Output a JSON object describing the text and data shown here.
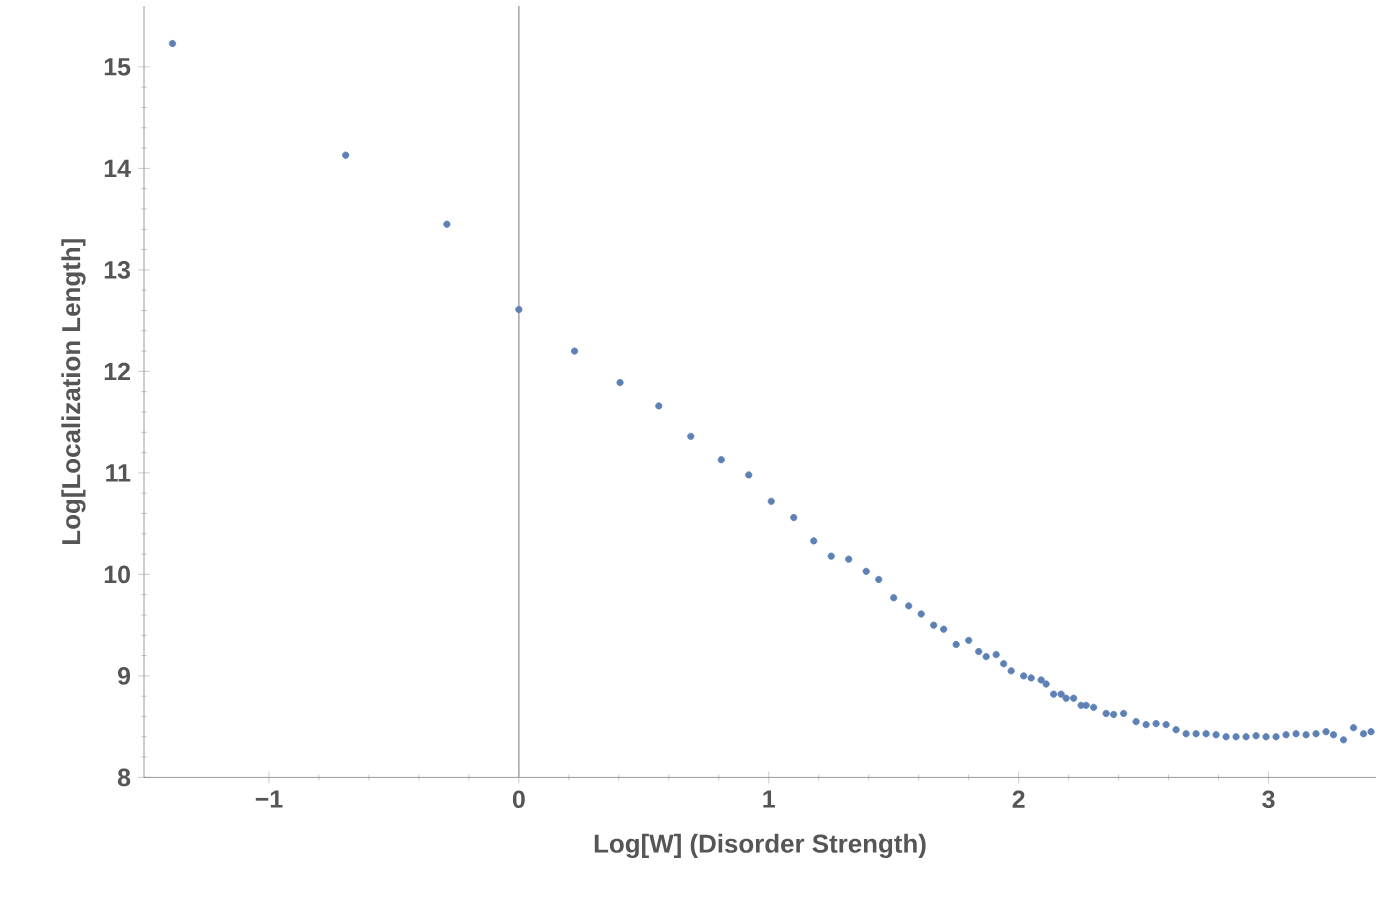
{
  "chart_data": {
    "type": "scatter",
    "xlabel": "Log[W] (Disorder Strength)",
    "ylabel": "Log[Localization Length]",
    "xlim": [
      -1.5,
      3.43
    ],
    "ylim": [
      8,
      15.6
    ],
    "xticks": [
      {
        "value": -1,
        "label": "−1"
      },
      0,
      1,
      2,
      3
    ],
    "yticks": [
      8,
      9,
      10,
      11,
      12,
      13,
      14,
      15
    ],
    "marker": "circle",
    "grid": false,
    "ref_lines": [
      {
        "axis": "x",
        "value": 0,
        "color": "#aaaaaa"
      }
    ],
    "series": [
      {
        "color": "#5e81b5",
        "x": [
          -1.386,
          -0.693,
          -0.288,
          0,
          0.223,
          0.405,
          0.56,
          0.688,
          0.81,
          0.92,
          1.01,
          1.1,
          1.18,
          1.25,
          1.32,
          1.39,
          1.44,
          1.5,
          1.56,
          1.61,
          1.66,
          1.7,
          1.75,
          1.8,
          1.84,
          1.87,
          1.91,
          1.94,
          1.97,
          2.02,
          2.05,
          2.09,
          2.11,
          2.14,
          2.17,
          2.19,
          2.22,
          2.25,
          2.27,
          2.3,
          2.35,
          2.38,
          2.42,
          2.47,
          2.51,
          2.55,
          2.59,
          2.63,
          2.67,
          2.71,
          2.75,
          2.79,
          2.83,
          2.87,
          2.91,
          2.95,
          2.99,
          3.03,
          3.07,
          3.11,
          3.15,
          3.19,
          3.23,
          3.26,
          3.3,
          3.34,
          3.38,
          3.41
        ],
        "values": [
          15.23,
          14.13,
          13.45,
          12.61,
          12.2,
          11.89,
          11.66,
          11.36,
          11.13,
          10.98,
          10.72,
          10.56,
          10.33,
          10.18,
          10.15,
          10.03,
          9.95,
          9.77,
          9.69,
          9.61,
          9.5,
          9.46,
          9.31,
          9.35,
          9.24,
          9.19,
          9.21,
          9.12,
          9.05,
          9.0,
          8.98,
          8.96,
          8.92,
          8.82,
          8.82,
          8.78,
          8.78,
          8.71,
          8.71,
          8.69,
          8.63,
          8.62,
          8.63,
          8.55,
          8.52,
          8.53,
          8.52,
          8.47,
          8.43,
          8.43,
          8.43,
          8.42,
          8.4,
          8.4,
          8.4,
          8.41,
          8.4,
          8.4,
          8.42,
          8.43,
          8.42,
          8.43,
          8.45,
          8.42,
          8.37,
          8.49,
          8.43,
          8.45
        ]
      }
    ]
  }
}
